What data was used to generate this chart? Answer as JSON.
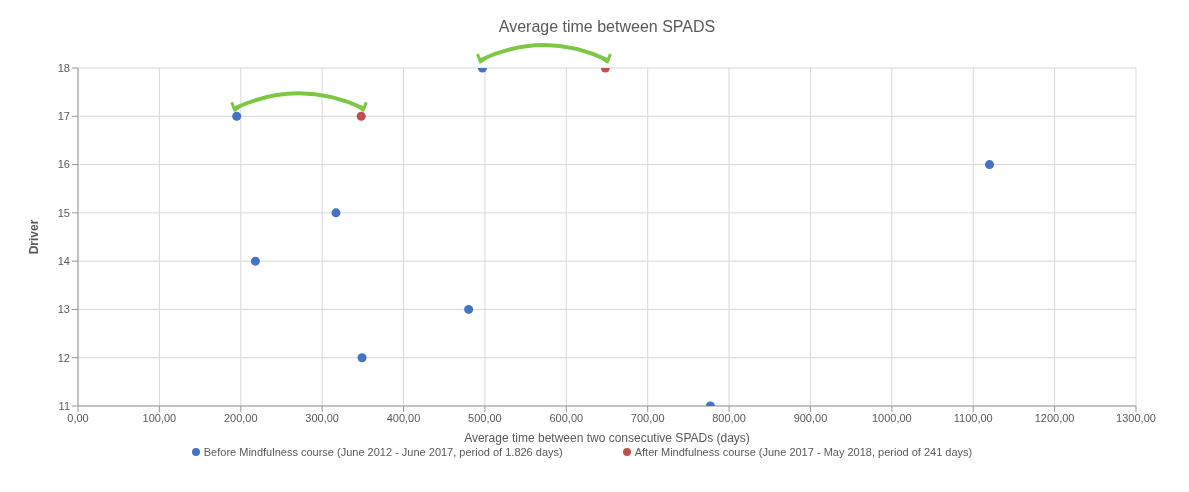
{
  "chart_data": {
    "type": "scatter",
    "title": "Average time between SPADS",
    "xlabel": "Average time between two consecutive SPADs (days)",
    "ylabel": "Driver",
    "series": [
      {
        "name": "Before Mindfulness course (June 2012 - June 2017, period of 1.826 days)",
        "color": "#4472c4",
        "x": [
          195,
          497,
          317,
          218,
          480,
          349,
          777,
          1120
        ],
        "values": [
          17,
          18,
          15,
          14,
          13,
          12,
          11,
          16
        ]
      },
      {
        "name": "After Mindfulness course (June 2017 - May 2018, period of 241 days)",
        "color": "#c0504d",
        "x": [
          348,
          648
        ],
        "values": [
          17,
          18
        ]
      }
    ],
    "xlim": [
      0,
      1300
    ],
    "xticks": [
      {
        "value": 0,
        "label": "0,00"
      },
      {
        "value": 100,
        "label": "100,00"
      },
      {
        "value": 200,
        "label": "200,00"
      },
      {
        "value": 300,
        "label": "300,00"
      },
      {
        "value": 400,
        "label": "400,00"
      },
      {
        "value": 500,
        "label": "500,00"
      },
      {
        "value": 600,
        "label": "600,00"
      },
      {
        "value": 700,
        "label": "700,00"
      },
      {
        "value": 800,
        "label": "800,00"
      },
      {
        "value": 900,
        "label": "900,00"
      },
      {
        "value": 1000,
        "label": "1000,00"
      },
      {
        "value": 1100,
        "label": "1100,00"
      },
      {
        "value": 1200,
        "label": "1200,00"
      },
      {
        "value": 1300,
        "label": "1300,00"
      }
    ],
    "ylim": [
      11,
      18
    ],
    "yticks": [
      11,
      12,
      13,
      14,
      15,
      16,
      17,
      18
    ],
    "grid": true,
    "legend": "bottom",
    "marker": "circle"
  }
}
